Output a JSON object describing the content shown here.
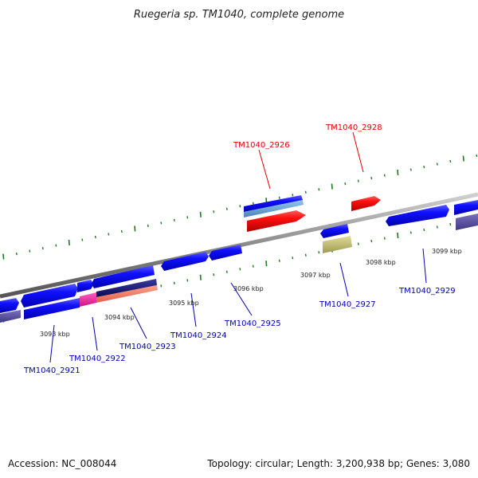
{
  "title": "Ruegeria sp. TM1040, complete genome",
  "footer": {
    "accession": "Accession: NC_008044",
    "summary": "Topology: circular; Length: 3,200,938 bp; Genes: 3,080"
  },
  "colors": {
    "backbone": "#888888",
    "tick": "#1f7a1f",
    "gene_blue": "#0000ee",
    "gene_red": "#ee0000",
    "label_red": "#e00000",
    "label_blue": "#0000b0"
  },
  "kbp_labels": [
    "3093 kbp",
    "3094 kbp",
    "3095 kbp",
    "3096 kbp",
    "3097 kbp",
    "3098 kbp",
    "3099 kbp"
  ],
  "gene_labels": {
    "tm1040_2921": "TM1040_2921",
    "tm1040_2922": "TM1040_2922",
    "tm1040_2923": "TM1040_2923",
    "tm1040_2924": "TM1040_2924",
    "tm1040_2925": "TM1040_2925",
    "tm1040_2926": "TM1040_2926",
    "tm1040_2927": "TM1040_2927",
    "tm1040_2928": "TM1040_2928",
    "tm1040_2929": "TM1040_2929"
  }
}
